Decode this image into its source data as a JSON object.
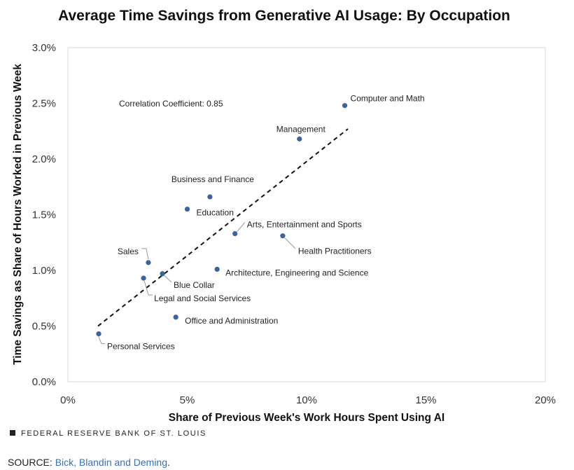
{
  "chart_data": {
    "type": "scatter",
    "title": "Average Time Savings from Generative AI Usage: By Occupation",
    "xlabel": "Share of Previous Week's Work Hours Spent Using AI",
    "ylabel": "Time Savings as Share of Hours Worked in Previous Week",
    "xlim": [
      0,
      20
    ],
    "ylim": [
      0,
      3
    ],
    "x_ticks": [
      0,
      5,
      10,
      15,
      20
    ],
    "x_tick_labels": [
      "0%",
      "5%",
      "10%",
      "15%",
      "20%"
    ],
    "y_ticks": [
      0,
      0.5,
      1,
      1.5,
      2,
      2.5,
      3
    ],
    "y_tick_labels": [
      "0.0%",
      "0.5%",
      "1.0%",
      "1.5%",
      "2.0%",
      "2.5%",
      "3.0%"
    ],
    "grid": false,
    "annotation": "Correlation Coefficient: 0.85",
    "points": [
      {
        "label": "Computer and Math",
        "x": 11.6,
        "y": 2.48
      },
      {
        "label": "Management",
        "x": 9.7,
        "y": 2.18
      },
      {
        "label": "Business and Finance",
        "x": 5.95,
        "y": 1.66
      },
      {
        "label": "Education",
        "x": 5.0,
        "y": 1.55
      },
      {
        "label": "Arts, Entertainment and Sports",
        "x": 7.0,
        "y": 1.33
      },
      {
        "label": "Health Practitioners",
        "x": 9.0,
        "y": 1.31
      },
      {
        "label": "Sales",
        "x": 3.37,
        "y": 1.07
      },
      {
        "label": "Blue Collar",
        "x": 3.96,
        "y": 0.97
      },
      {
        "label": "Architecture, Engineering and Science",
        "x": 6.25,
        "y": 1.01
      },
      {
        "label": "Legal and Social Services",
        "x": 3.17,
        "y": 0.93
      },
      {
        "label": "Office and Administration",
        "x": 4.52,
        "y": 0.58
      },
      {
        "label": "Personal Services",
        "x": 1.29,
        "y": 0.43
      }
    ],
    "trendline": {
      "x": [
        1.26,
        11.73
      ],
      "y": [
        0.5,
        2.27
      ]
    },
    "point_color": "#3b63a0"
  },
  "footer": {
    "brand": "FEDERAL RESERVE BANK OF ST. LOUIS",
    "source_prefix": "SOURCE: ",
    "source_link": "Bick, Blandin and Deming",
    "source_suffix": "."
  }
}
